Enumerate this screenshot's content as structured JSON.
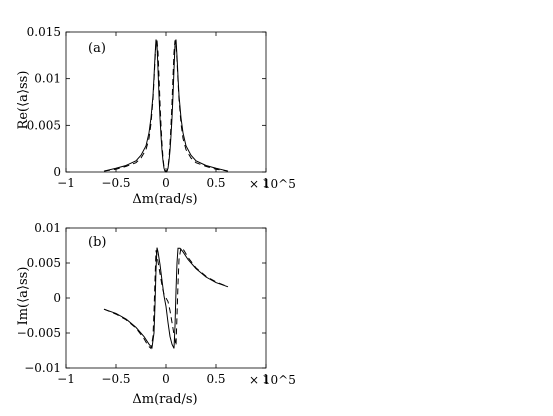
{
  "chart_data": [
    {
      "type": "line",
      "panel_label": "(a)",
      "xlabel": "Δm(rad/s)",
      "ylabel": "Re(⟨a⟩ss)",
      "x_multiplier_label": "× 10^5",
      "xlim": [
        -1,
        1
      ],
      "ylim": [
        0,
        0.015
      ],
      "x_ticks": [
        -1,
        -0.5,
        0,
        0.5,
        1
      ],
      "x_tick_labels": [
        "−1",
        "−0.5",
        "0",
        "0.5",
        "1"
      ],
      "y_ticks": [
        0,
        0.005,
        0.01,
        0.015
      ],
      "y_tick_labels": [
        "0",
        "0.005",
        "0.01",
        "0.015"
      ],
      "grid": false,
      "series": [
        {
          "style": "solid",
          "x": [
            -0.62,
            -0.5,
            -0.4,
            -0.3,
            -0.25,
            -0.2,
            -0.17,
            -0.15,
            -0.13,
            -0.12,
            -0.11,
            -0.1,
            -0.09,
            -0.08,
            -0.07,
            -0.06,
            -0.05,
            -0.04,
            -0.03,
            -0.02,
            -0.01,
            0,
            0.01,
            0.02,
            0.03,
            0.04,
            0.05,
            0.06,
            0.07,
            0.08,
            0.09,
            0.1,
            0.11,
            0.12,
            0.13,
            0.15,
            0.17,
            0.2,
            0.25,
            0.3,
            0.4,
            0.5,
            0.62
          ],
          "y": [
            0.0001,
            0.0004,
            0.0007,
            0.0012,
            0.0018,
            0.0028,
            0.0042,
            0.0058,
            0.0082,
            0.0102,
            0.0124,
            0.0142,
            0.0136,
            0.011,
            0.0082,
            0.0058,
            0.0039,
            0.0023,
            0.0012,
            0.0004,
            0.0001,
            0.0,
            0.0001,
            0.0004,
            0.0012,
            0.0023,
            0.0039,
            0.0058,
            0.0082,
            0.011,
            0.0136,
            0.0142,
            0.0124,
            0.0102,
            0.0082,
            0.0058,
            0.0042,
            0.0028,
            0.0018,
            0.0012,
            0.0007,
            0.0004,
            0.0001
          ]
        },
        {
          "style": "dashed",
          "x": [
            -0.62,
            -0.5,
            -0.4,
            -0.3,
            -0.25,
            -0.2,
            -0.17,
            -0.15,
            -0.13,
            -0.12,
            -0.11,
            -0.1,
            -0.09,
            -0.08,
            -0.07,
            -0.06,
            -0.05,
            -0.04,
            -0.03,
            -0.02,
            -0.01,
            0,
            0.01,
            0.02,
            0.03,
            0.04,
            0.05,
            0.06,
            0.07,
            0.08,
            0.09,
            0.1,
            0.11,
            0.12,
            0.13,
            0.15,
            0.17,
            0.2,
            0.25,
            0.3,
            0.4,
            0.5,
            0.62
          ],
          "y": [
            0.0001,
            0.0003,
            0.0006,
            0.001,
            0.0015,
            0.0024,
            0.0036,
            0.0052,
            0.0078,
            0.0098,
            0.012,
            0.0138,
            0.0141,
            0.0128,
            0.0102,
            0.0074,
            0.005,
            0.003,
            0.0015,
            0.0005,
            0.0001,
            0.0,
            0.0001,
            0.0005,
            0.0015,
            0.003,
            0.005,
            0.0074,
            0.0102,
            0.0128,
            0.0141,
            0.0138,
            0.012,
            0.0098,
            0.0078,
            0.0052,
            0.0036,
            0.0024,
            0.0015,
            0.001,
            0.0006,
            0.0003,
            0.0001
          ]
        }
      ]
    },
    {
      "type": "line",
      "panel_label": "(b)",
      "xlabel": "Δm(rad/s)",
      "ylabel": "Im(⟨a⟩ss)",
      "x_multiplier_label": "× 10^5",
      "xlim": [
        -1,
        1
      ],
      "ylim": [
        -0.01,
        0.01
      ],
      "x_ticks": [
        -1,
        -0.5,
        0,
        0.5,
        1
      ],
      "x_tick_labels": [
        "−1",
        "−0.5",
        "0",
        "0.5",
        "1"
      ],
      "y_ticks": [
        -0.01,
        -0.005,
        0,
        0.005,
        0.01
      ],
      "y_tick_labels": [
        "−0.01",
        "−0.005",
        "0",
        "0.005",
        "0.01"
      ],
      "grid": false,
      "series": [
        {
          "style": "solid",
          "x": [
            -0.62,
            -0.5,
            -0.4,
            -0.3,
            -0.22,
            -0.17,
            -0.14,
            -0.12,
            -0.11,
            -0.1,
            -0.09,
            -0.08,
            -0.06,
            -0.04,
            -0.02,
            0,
            0.02,
            0.04,
            0.06,
            0.08,
            0.09,
            0.1,
            0.11,
            0.12,
            0.14,
            0.17,
            0.22,
            0.3,
            0.4,
            0.5,
            0.62
          ],
          "y": [
            -0.0016,
            -0.0022,
            -0.003,
            -0.0042,
            -0.0055,
            -0.0066,
            -0.0071,
            -0.005,
            -0.001,
            0.004,
            0.0072,
            0.0066,
            0.0048,
            0.0025,
            0.0003,
            -0.0012,
            -0.0035,
            -0.0055,
            -0.0066,
            -0.0072,
            -0.004,
            0.001,
            0.005,
            0.0071,
            0.0071,
            0.0066,
            0.0055,
            0.0042,
            0.003,
            0.0022,
            0.0016
          ]
        },
        {
          "style": "dashed",
          "x": [
            -0.62,
            -0.5,
            -0.4,
            -0.3,
            -0.22,
            -0.18,
            -0.15,
            -0.13,
            -0.12,
            -0.11,
            -0.1,
            -0.08,
            -0.06,
            -0.04,
            -0.02,
            0,
            0.02,
            0.04,
            0.06,
            0.08,
            0.1,
            0.11,
            0.12,
            0.13,
            0.15,
            0.18,
            0.22,
            0.3,
            0.4,
            0.5,
            0.62
          ],
          "y": [
            -0.0016,
            -0.0023,
            -0.0031,
            -0.0043,
            -0.0058,
            -0.0068,
            -0.0072,
            -0.0055,
            -0.002,
            0.0025,
            0.0068,
            0.0052,
            0.0035,
            0.0018,
            0.0005,
            0.0,
            -0.0005,
            -0.0018,
            -0.0035,
            -0.0052,
            -0.0068,
            -0.0025,
            0.002,
            0.0055,
            0.0072,
            0.0068,
            0.0058,
            0.0043,
            0.0031,
            0.0023,
            0.0016
          ]
        }
      ]
    }
  ]
}
